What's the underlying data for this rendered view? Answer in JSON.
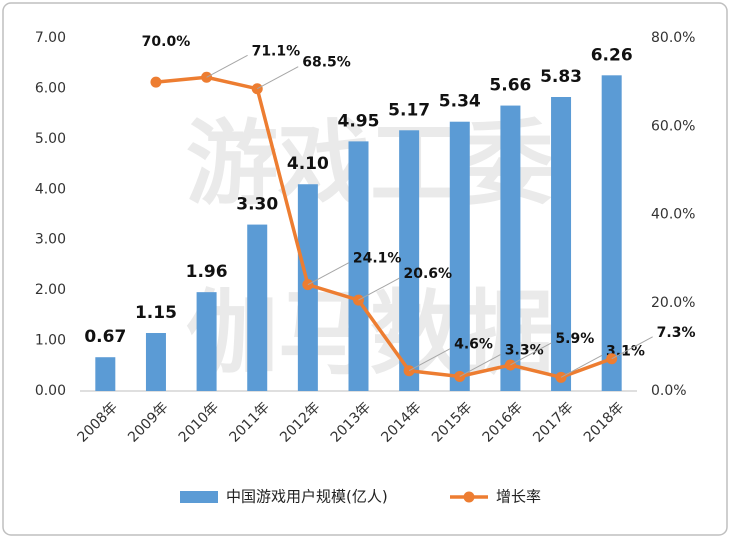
{
  "chart_data": {
    "type": "bar-line",
    "watermark": [
      "游戏工委",
      "伽马数据"
    ],
    "categories": [
      "2008年",
      "2009年",
      "2010年",
      "2011年",
      "2012年",
      "2013年",
      "2014年",
      "2015年",
      "2016年",
      "2017年",
      "2018年"
    ],
    "series": [
      {
        "name": "中国游戏用户规模(亿人)",
        "type": "bar",
        "color": "#5b9bd5",
        "values": [
          0.67,
          1.15,
          1.96,
          3.3,
          4.1,
          4.95,
          5.17,
          5.34,
          5.66,
          5.83,
          6.26
        ],
        "value_labels": [
          "0.67",
          "1.15",
          "1.96",
          "3.30",
          "4.10",
          "4.95",
          "5.17",
          "5.34",
          "5.66",
          "5.83",
          "6.26"
        ]
      },
      {
        "name": "增长率",
        "type": "line",
        "axis": "y2",
        "color": "#ed7d31",
        "values": [
          null,
          70.0,
          71.1,
          68.5,
          24.1,
          20.6,
          4.6,
          3.3,
          5.9,
          3.1,
          7.3
        ],
        "value_labels": [
          null,
          "70.0%",
          "71.1%",
          "68.5%",
          "24.1%",
          "20.6%",
          "4.6%",
          "3.3%",
          "5.9%",
          "3.1%",
          "7.3%"
        ]
      }
    ],
    "ylim": [
      0,
      7
    ],
    "yticks": [
      {
        "value": 0,
        "label": "0.00"
      },
      {
        "value": 1,
        "label": "1.00"
      },
      {
        "value": 2,
        "label": "2.00"
      },
      {
        "value": 3,
        "label": "3.00"
      },
      {
        "value": 4,
        "label": "4.00"
      },
      {
        "value": 5,
        "label": "5.00"
      },
      {
        "value": 6,
        "label": "6.00"
      },
      {
        "value": 7,
        "label": "7.00"
      }
    ],
    "y2lim": [
      0,
      80
    ],
    "y2ticks": [
      {
        "value": 0,
        "label": "0.0%"
      },
      {
        "value": 20,
        "label": "20.0%"
      },
      {
        "value": 40,
        "label": "40.0%"
      },
      {
        "value": 60,
        "label": "60.0%"
      },
      {
        "value": 80,
        "label": "80.0%"
      }
    ],
    "grid": false,
    "legend": "bottom"
  }
}
